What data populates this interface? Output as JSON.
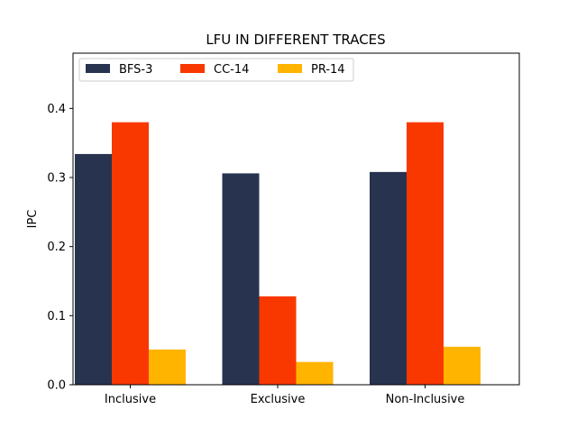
{
  "chart_data": {
    "type": "bar",
    "title": "LFU IN DIFFERENT TRACES",
    "xlabel": "",
    "ylabel": "IPC",
    "categories": [
      "Inclusive",
      "Exclusive",
      "Non-Inclusive"
    ],
    "series": [
      {
        "name": "BFS-3",
        "color": "#283350",
        "values": [
          0.334,
          0.306,
          0.308
        ]
      },
      {
        "name": "CC-14",
        "color": "#f93800",
        "values": [
          0.38,
          0.128,
          0.38
        ]
      },
      {
        "name": "PR-14",
        "color": "#ffb400",
        "values": [
          0.051,
          0.033,
          0.055
        ]
      }
    ],
    "ylim": [
      0,
      0.48
    ],
    "yticks": [
      0.0,
      0.1,
      0.2,
      0.3,
      0.4
    ],
    "ytick_labels": [
      "0.0",
      "0.1",
      "0.2",
      "0.3",
      "0.4"
    ],
    "grid": false,
    "legend": {
      "placement": "top-left",
      "columns": 3
    }
  }
}
